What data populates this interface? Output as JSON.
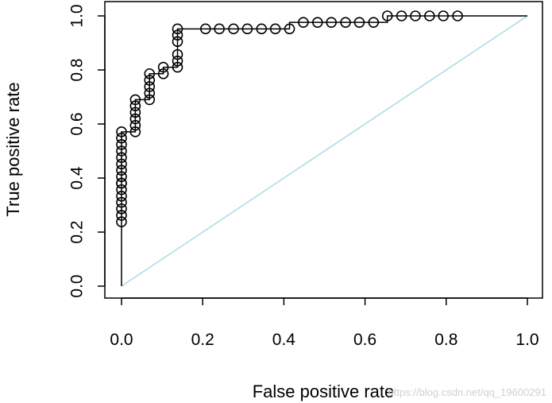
{
  "chart_data": {
    "type": "line",
    "title": "",
    "xlabel": "False positive rate",
    "ylabel": "True positive rate",
    "xlim": [
      0,
      1
    ],
    "ylim": [
      0,
      1
    ],
    "x_ticks": [
      "0.0",
      "0.2",
      "0.4",
      "0.6",
      "0.8",
      "1.0"
    ],
    "y_ticks": [
      "0.0",
      "0.2",
      "0.4",
      "0.6",
      "0.8",
      "1.0"
    ],
    "grid": false,
    "legend": "none",
    "series": [
      {
        "type": "step-line",
        "color": "#000000",
        "x": [
          0,
          0,
          0.034,
          0.034,
          0.069,
          0.069,
          0.103,
          0.103,
          0.138,
          0.138,
          0.414,
          0.414,
          0.655,
          0.655,
          1.0
        ],
        "y": [
          0,
          0.571,
          0.571,
          0.69,
          0.69,
          0.786,
          0.786,
          0.81,
          0.81,
          0.952,
          0.952,
          0.976,
          0.976,
          1.0,
          1.0
        ]
      },
      {
        "type": "points",
        "marker": "open-circle",
        "color": "#000000",
        "x": [
          0,
          0,
          0,
          0,
          0,
          0,
          0,
          0,
          0,
          0,
          0,
          0,
          0,
          0,
          0,
          0,
          0.034,
          0.034,
          0.034,
          0.034,
          0.034,
          0.034,
          0.069,
          0.069,
          0.069,
          0.069,
          0.069,
          0.103,
          0.103,
          0.138,
          0.138,
          0.138,
          0.138,
          0.138,
          0.138,
          0.207,
          0.241,
          0.276,
          0.31,
          0.345,
          0.379,
          0.414,
          0.448,
          0.483,
          0.517,
          0.552,
          0.586,
          0.621,
          0.655,
          0.69,
          0.724,
          0.759,
          0.793,
          0.828
        ],
        "y": [
          0.238,
          0.262,
          0.286,
          0.31,
          0.333,
          0.357,
          0.381,
          0.405,
          0.429,
          0.452,
          0.476,
          0.5,
          0.524,
          0.548,
          0.571,
          0.381,
          0.571,
          0.595,
          0.619,
          0.643,
          0.667,
          0.69,
          0.69,
          0.714,
          0.738,
          0.762,
          0.786,
          0.786,
          0.81,
          0.81,
          0.833,
          0.857,
          0.905,
          0.929,
          0.952,
          0.952,
          0.952,
          0.952,
          0.952,
          0.952,
          0.952,
          0.952,
          0.976,
          0.976,
          0.976,
          0.976,
          0.976,
          0.976,
          1.0,
          1.0,
          1.0,
          1.0,
          1.0,
          1.0
        ]
      },
      {
        "type": "diagonal-line",
        "color": "#add8e6",
        "x": [
          0,
          1
        ],
        "y": [
          0,
          1
        ]
      }
    ]
  },
  "watermark": "https://blog.csdn.net/qq_19600291"
}
